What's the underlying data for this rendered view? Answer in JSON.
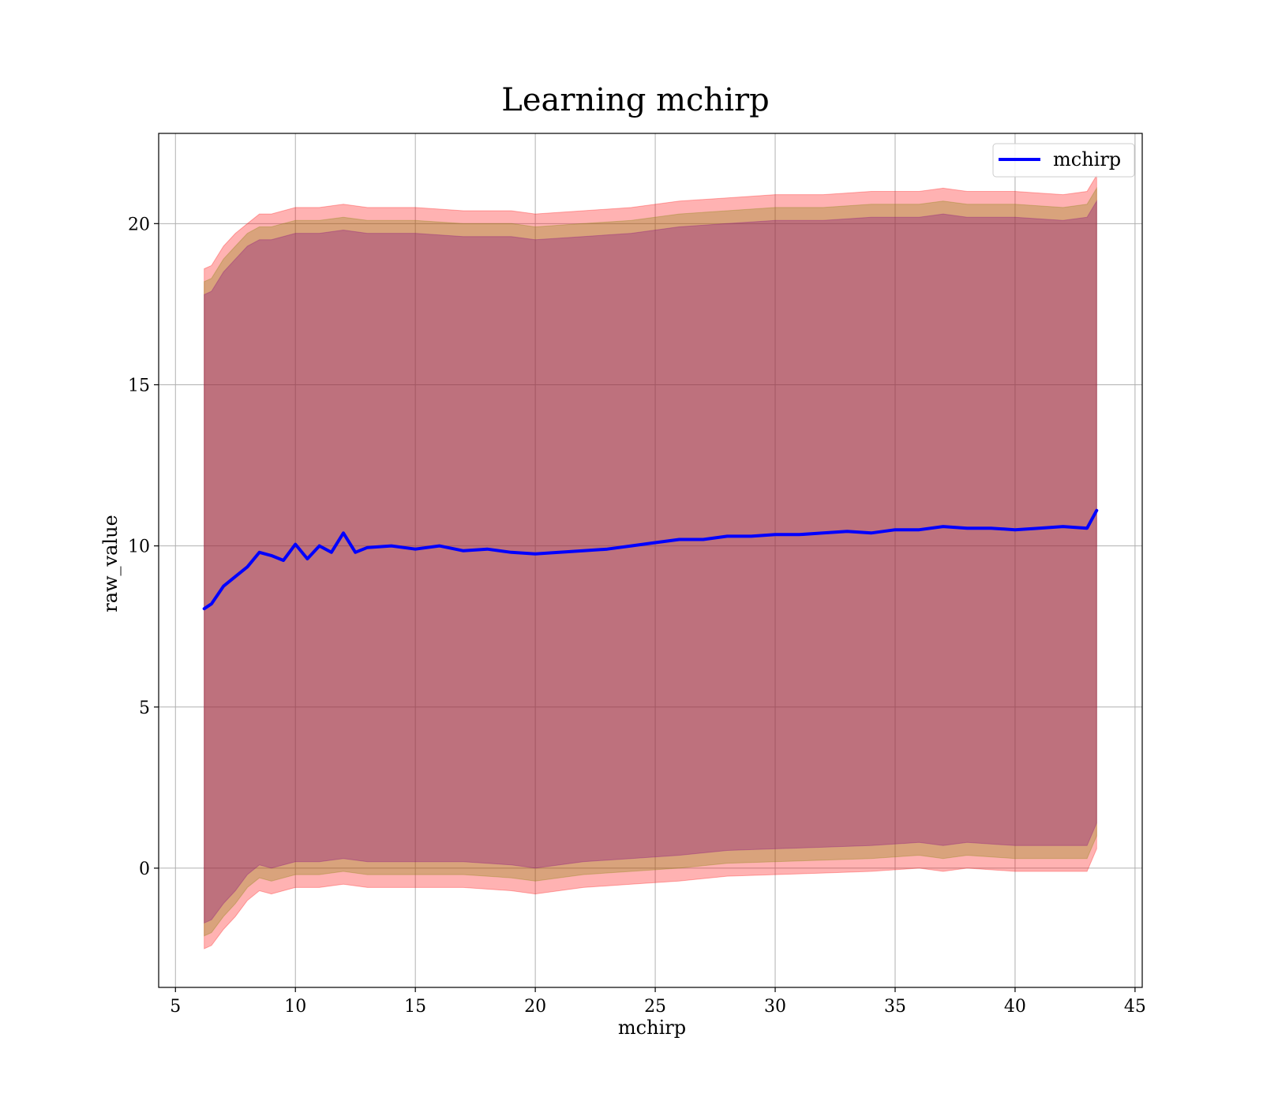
{
  "chart_data": {
    "type": "line",
    "title": "Learning mchirp",
    "xlabel": "mchirp",
    "ylabel": "raw_value",
    "xlim": [
      4.3,
      45.3
    ],
    "ylim": [
      -3.7,
      22.8
    ],
    "xticks": [
      5,
      10,
      15,
      20,
      25,
      30,
      35,
      40,
      45
    ],
    "yticks": [
      0,
      5,
      10,
      15,
      20
    ],
    "grid": true,
    "legend_position": "top-right",
    "series": [
      {
        "name": "mchirp",
        "color": "#0000ff",
        "x": [
          6.2,
          6.5,
          7.0,
          7.5,
          8.0,
          8.5,
          9.0,
          9.5,
          10.0,
          10.5,
          11.0,
          11.5,
          12.0,
          12.5,
          13.0,
          14.0,
          15.0,
          16.0,
          17.0,
          18.0,
          19.0,
          20.0,
          21.0,
          22.0,
          23.0,
          24.0,
          25.0,
          26.0,
          27.0,
          28.0,
          29.0,
          30.0,
          31.0,
          32.0,
          33.0,
          34.0,
          35.0,
          36.0,
          37.0,
          38.0,
          39.0,
          40.0,
          41.0,
          42.0,
          43.0,
          43.4
        ],
        "y": [
          8.05,
          8.2,
          8.75,
          9.05,
          9.35,
          9.8,
          9.7,
          9.55,
          10.05,
          9.6,
          10.0,
          9.8,
          10.4,
          9.8,
          9.95,
          10.0,
          9.9,
          10.0,
          9.85,
          9.9,
          9.8,
          9.75,
          9.8,
          9.85,
          9.9,
          10.0,
          10.1,
          10.2,
          10.2,
          10.3,
          10.3,
          10.35,
          10.35,
          10.4,
          10.45,
          10.4,
          10.5,
          10.5,
          10.6,
          10.55,
          10.55,
          10.5,
          10.55,
          10.6,
          10.55,
          11.1
        ]
      }
    ],
    "bands": [
      {
        "color": "#ff0000",
        "opacity": 0.3,
        "x": [
          6.2,
          6.5,
          7.0,
          7.5,
          8.0,
          8.5,
          9.0,
          10.0,
          11.0,
          12.0,
          13.0,
          15.0,
          17.0,
          19.0,
          20.0,
          22.0,
          24.0,
          26.0,
          28.0,
          30.0,
          32.0,
          34.0,
          36.0,
          37.0,
          38.0,
          40.0,
          42.0,
          43.0,
          43.4
        ],
        "upper": [
          18.6,
          18.7,
          19.3,
          19.7,
          20.0,
          20.3,
          20.3,
          20.5,
          20.5,
          20.6,
          20.5,
          20.5,
          20.4,
          20.4,
          20.3,
          20.4,
          20.5,
          20.7,
          20.8,
          20.9,
          20.9,
          21.0,
          21.0,
          21.1,
          21.0,
          21.0,
          20.9,
          21.0,
          21.5
        ],
        "lower": [
          -2.5,
          -2.4,
          -1.9,
          -1.5,
          -1.0,
          -0.7,
          -0.8,
          -0.6,
          -0.6,
          -0.5,
          -0.6,
          -0.6,
          -0.6,
          -0.7,
          -0.8,
          -0.6,
          -0.5,
          -0.4,
          -0.25,
          -0.2,
          -0.15,
          -0.1,
          0.0,
          -0.1,
          0.0,
          -0.1,
          -0.1,
          -0.1,
          0.6
        ]
      },
      {
        "color": "#808000",
        "opacity": 0.3,
        "x": [
          6.2,
          6.5,
          7.0,
          7.5,
          8.0,
          8.5,
          9.0,
          10.0,
          11.0,
          12.0,
          13.0,
          15.0,
          17.0,
          19.0,
          20.0,
          22.0,
          24.0,
          26.0,
          28.0,
          30.0,
          32.0,
          34.0,
          36.0,
          37.0,
          38.0,
          40.0,
          42.0,
          43.0,
          43.4
        ],
        "upper": [
          18.2,
          18.3,
          18.9,
          19.3,
          19.7,
          19.9,
          19.9,
          20.1,
          20.1,
          20.2,
          20.1,
          20.1,
          20.0,
          20.0,
          19.9,
          20.0,
          20.1,
          20.3,
          20.4,
          20.5,
          20.5,
          20.6,
          20.6,
          20.7,
          20.6,
          20.6,
          20.5,
          20.6,
          21.1
        ],
        "lower": [
          -2.1,
          -2.0,
          -1.5,
          -1.1,
          -0.6,
          -0.3,
          -0.4,
          -0.2,
          -0.2,
          -0.1,
          -0.2,
          -0.2,
          -0.2,
          -0.3,
          -0.4,
          -0.2,
          -0.1,
          0.0,
          0.15,
          0.2,
          0.25,
          0.3,
          0.4,
          0.3,
          0.4,
          0.3,
          0.3,
          0.3,
          1.0
        ]
      },
      {
        "color": "#800080",
        "opacity": 0.3,
        "x": [
          6.2,
          6.5,
          7.0,
          7.5,
          8.0,
          8.5,
          9.0,
          10.0,
          11.0,
          12.0,
          13.0,
          15.0,
          17.0,
          19.0,
          20.0,
          22.0,
          24.0,
          26.0,
          28.0,
          30.0,
          32.0,
          34.0,
          36.0,
          37.0,
          38.0,
          40.0,
          42.0,
          43.0,
          43.4
        ],
        "upper": [
          17.8,
          17.9,
          18.5,
          18.9,
          19.3,
          19.5,
          19.5,
          19.7,
          19.7,
          19.8,
          19.7,
          19.7,
          19.6,
          19.6,
          19.5,
          19.6,
          19.7,
          19.9,
          20.0,
          20.1,
          20.1,
          20.2,
          20.2,
          20.3,
          20.2,
          20.2,
          20.1,
          20.2,
          20.7
        ],
        "lower": [
          -1.7,
          -1.6,
          -1.1,
          -0.7,
          -0.2,
          0.1,
          0.0,
          0.2,
          0.2,
          0.3,
          0.2,
          0.2,
          0.2,
          0.1,
          0.0,
          0.2,
          0.3,
          0.4,
          0.55,
          0.6,
          0.65,
          0.7,
          0.8,
          0.7,
          0.8,
          0.7,
          0.7,
          0.7,
          1.4
        ]
      }
    ]
  }
}
